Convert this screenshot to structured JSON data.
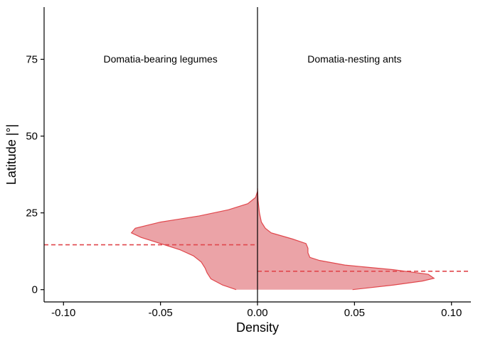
{
  "chart_data": {
    "type": "area",
    "xlabel": "Density",
    "ylabel": "Latitude |°|",
    "xlim": [
      -0.11,
      0.11
    ],
    "ylim": [
      -4,
      92
    ],
    "x_ticks": [
      -0.1,
      -0.05,
      0.0,
      0.05,
      0.1
    ],
    "x_tick_labels": [
      "-0.10",
      "-0.05",
      "0.00",
      "0.05",
      "0.10"
    ],
    "y_ticks": [
      0,
      25,
      50,
      75
    ],
    "y_tick_labels": [
      "0",
      "25",
      "50",
      "75"
    ],
    "grid": false,
    "fill_color": "#eba3a7",
    "line_color": "#e0474c",
    "annotations": [
      {
        "text": "Domatia-bearing legumes",
        "x": -0.05,
        "y": 74
      },
      {
        "text": "Domatia-nesting ants",
        "x": 0.05,
        "y": 74
      }
    ],
    "series": [
      {
        "side": "left",
        "points": [
          [
            -0.011,
            0
          ],
          [
            -0.018,
            1.5
          ],
          [
            -0.024,
            3.5
          ],
          [
            -0.026,
            5.5
          ],
          [
            -0.027,
            7
          ],
          [
            -0.029,
            9
          ],
          [
            -0.033,
            11
          ],
          [
            -0.04,
            13
          ],
          [
            -0.05,
            15
          ],
          [
            -0.06,
            17
          ],
          [
            -0.065,
            18.5
          ],
          [
            -0.063,
            20
          ],
          [
            -0.05,
            22
          ],
          [
            -0.03,
            24
          ],
          [
            -0.015,
            26
          ],
          [
            -0.005,
            28
          ],
          [
            -0.001,
            30
          ],
          [
            0,
            32
          ]
        ],
        "median_y": 14.6
      },
      {
        "side": "right",
        "points": [
          [
            0.049,
            0
          ],
          [
            0.07,
            1.5
          ],
          [
            0.085,
            2.8
          ],
          [
            0.091,
            3.7
          ],
          [
            0.088,
            5
          ],
          [
            0.07,
            6.5
          ],
          [
            0.045,
            8
          ],
          [
            0.032,
            9.5
          ],
          [
            0.027,
            10.5
          ],
          [
            0.026,
            12
          ],
          [
            0.026,
            13.5
          ],
          [
            0.025,
            15
          ],
          [
            0.018,
            16.5
          ],
          [
            0.007,
            18.5
          ],
          [
            0.004,
            20
          ],
          [
            0.002,
            22
          ],
          [
            0.001,
            25
          ],
          [
            0.0003,
            29
          ],
          [
            0,
            33
          ]
        ],
        "median_y": 6.0
      }
    ]
  }
}
